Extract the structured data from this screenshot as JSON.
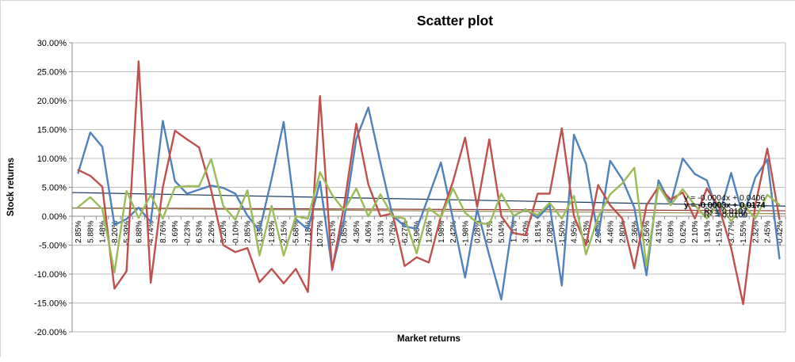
{
  "figure": {
    "title": "Scatter plot",
    "y_axis_title": "Stock returns",
    "x_axis_title": "Market returns"
  },
  "trendline_labels": {
    "eq1": "y = -0.0004x + 0.0406",
    "eq2": "y = -0.0003x + 0.0174",
    "r2_1": "R² = 0.0107",
    "r2_2": "R² = 0.0109"
  },
  "colors": {
    "series_blue": "#4F81BD",
    "series_red": "#C0504D",
    "series_green": "#9BBB59",
    "trend_blue": "#17375D",
    "trend_red": "#943634",
    "trend_olive": "#948A54",
    "gridline": "#BDBDBD",
    "axis": "#8C8C8C",
    "text": "#000000"
  },
  "chart_data": {
    "type": "line",
    "title": "Scatter plot",
    "xlabel": "Market returns",
    "ylabel": "Stock returns",
    "ylim": [
      -20,
      30
    ],
    "y_tick_step": 5,
    "grid": true,
    "legend": false,
    "y_tick_labels": [
      "30.00%",
      "25.00%",
      "20.00%",
      "15.00%",
      "10.00%",
      "5.00%",
      "0.00%",
      "-5.00%",
      "-10.00%",
      "-15.00%",
      "-20.00%"
    ],
    "categories": [
      "2.85%",
      "5.88%",
      "1.48%",
      "-8.20%",
      "-5.39%",
      "6.88%",
      "-4.74%",
      "8.76%",
      "3.69%",
      "-0.23%",
      "6.53%",
      "2.26%",
      "3.20%",
      "-0.10%",
      "2.85%",
      "-1.35%",
      "-1.83%",
      "-2.15%",
      "-5.68%",
      "-7.18%",
      "10.77%",
      "-0.51%",
      "0.85%",
      "4.36%",
      "4.06%",
      "3.13%",
      "-0.75%",
      "-6.27%",
      "3.96%",
      "1.26%",
      "1.98%",
      "2.42%",
      "-1.98%",
      "0.28%",
      "0.71%",
      "5.04%",
      "1.11%",
      "3.60%",
      "1.81%",
      "2.08%",
      "-1.50%",
      "4.95%",
      "-3.13%",
      "2.97%",
      "4.46%",
      "2.80%",
      "2.36%",
      "-3.56%",
      "4.31%",
      "0.69%",
      "0.62%",
      "2.10%",
      "1.91%",
      "-1.51%",
      "-3.77%",
      "-1.55%",
      "2.32%",
      "2.45%",
      "-0.42%"
    ],
    "series": [
      {
        "name": "blue",
        "color": "#4F81BD",
        "values": [
          7.5,
          14.5,
          12.0,
          -1.5,
          -0.5,
          1.5,
          -1.0,
          16.5,
          6.1,
          3.9,
          4.6,
          5.3,
          4.9,
          3.9,
          0.1,
          -2.5,
          6.5,
          16.3,
          -0.5,
          -2.3,
          6.0,
          -9.1,
          -0.5,
          13.4,
          18.8,
          9.2,
          0.1,
          -1.7,
          -2.2,
          3.5,
          9.3,
          -0.5,
          -10.6,
          1.2,
          -6.8,
          -14.4,
          0.0,
          1.2,
          -0.3,
          1.9,
          -12.0,
          14.1,
          9.1,
          -3.6,
          9.6,
          6.4,
          1.5,
          -10.2,
          6.2,
          2.1,
          10.0,
          7.3,
          6.2,
          0.0,
          7.5,
          -0.1,
          6.7,
          9.8,
          -7.3
        ]
      },
      {
        "name": "red",
        "color": "#C0504D",
        "values": [
          8.0,
          7.0,
          5.1,
          -12.5,
          -9.5,
          26.8,
          -11.5,
          5.0,
          14.8,
          13.3,
          11.9,
          4.5,
          -5.0,
          -6.2,
          -5.5,
          -11.4,
          -9.1,
          -11.6,
          -9.1,
          -13.1,
          20.8,
          -9.3,
          1.9,
          16.0,
          5.5,
          0.0,
          0.5,
          -8.6,
          -7.1,
          -8.0,
          0.0,
          6.0,
          13.6,
          1.6,
          13.3,
          0.0,
          -2.9,
          -3.3,
          3.9,
          3.9,
          15.2,
          0.0,
          -5.0,
          5.4,
          1.9,
          -0.4,
          -9.0,
          1.9,
          5.1,
          2.9,
          4.1,
          -0.4,
          4.8,
          1.6,
          -5.5,
          -15.2,
          1.9,
          11.7,
          -0.5
        ]
      },
      {
        "name": "green",
        "color": "#9BBB59",
        "values": [
          1.6,
          3.3,
          1.2,
          -9.7,
          4.4,
          -0.3,
          3.7,
          -0.4,
          5.0,
          5.2,
          5.2,
          9.9,
          1.8,
          -0.6,
          4.5,
          -6.8,
          1.8,
          -6.8,
          0.0,
          -0.4,
          7.6,
          3.7,
          1.0,
          4.8,
          0.0,
          3.8,
          0.0,
          -0.4,
          -6.4,
          1.4,
          -0.2,
          4.8,
          0.6,
          -1.1,
          -1.4,
          3.9,
          0.1,
          1.1,
          0.2,
          2.3,
          -0.4,
          3.5,
          -6.6,
          -0.2,
          3.8,
          5.7,
          8.4,
          -8.6,
          5.3,
          1.9,
          4.7,
          1.9,
          -0.4,
          2.5,
          -0.9,
          2.1,
          -0.4,
          3.7,
          2.0
        ]
      }
    ],
    "trendlines": [
      {
        "name": "blue-trend",
        "color": "#17375D",
        "start": 4.1,
        "end": 1.75,
        "equation": "y = -0.0004x + 0.0406"
      },
      {
        "name": "red-trend",
        "color": "#943634",
        "start": 1.45,
        "end": 0.95
      },
      {
        "name": "green-trend",
        "color": "#948A54",
        "start": 1.4,
        "end": 0.45,
        "equation": "y = -0.0003x + 0.0174"
      }
    ],
    "r_squared": [
      "R² = 0.0107",
      "R² = 0.0109"
    ]
  }
}
